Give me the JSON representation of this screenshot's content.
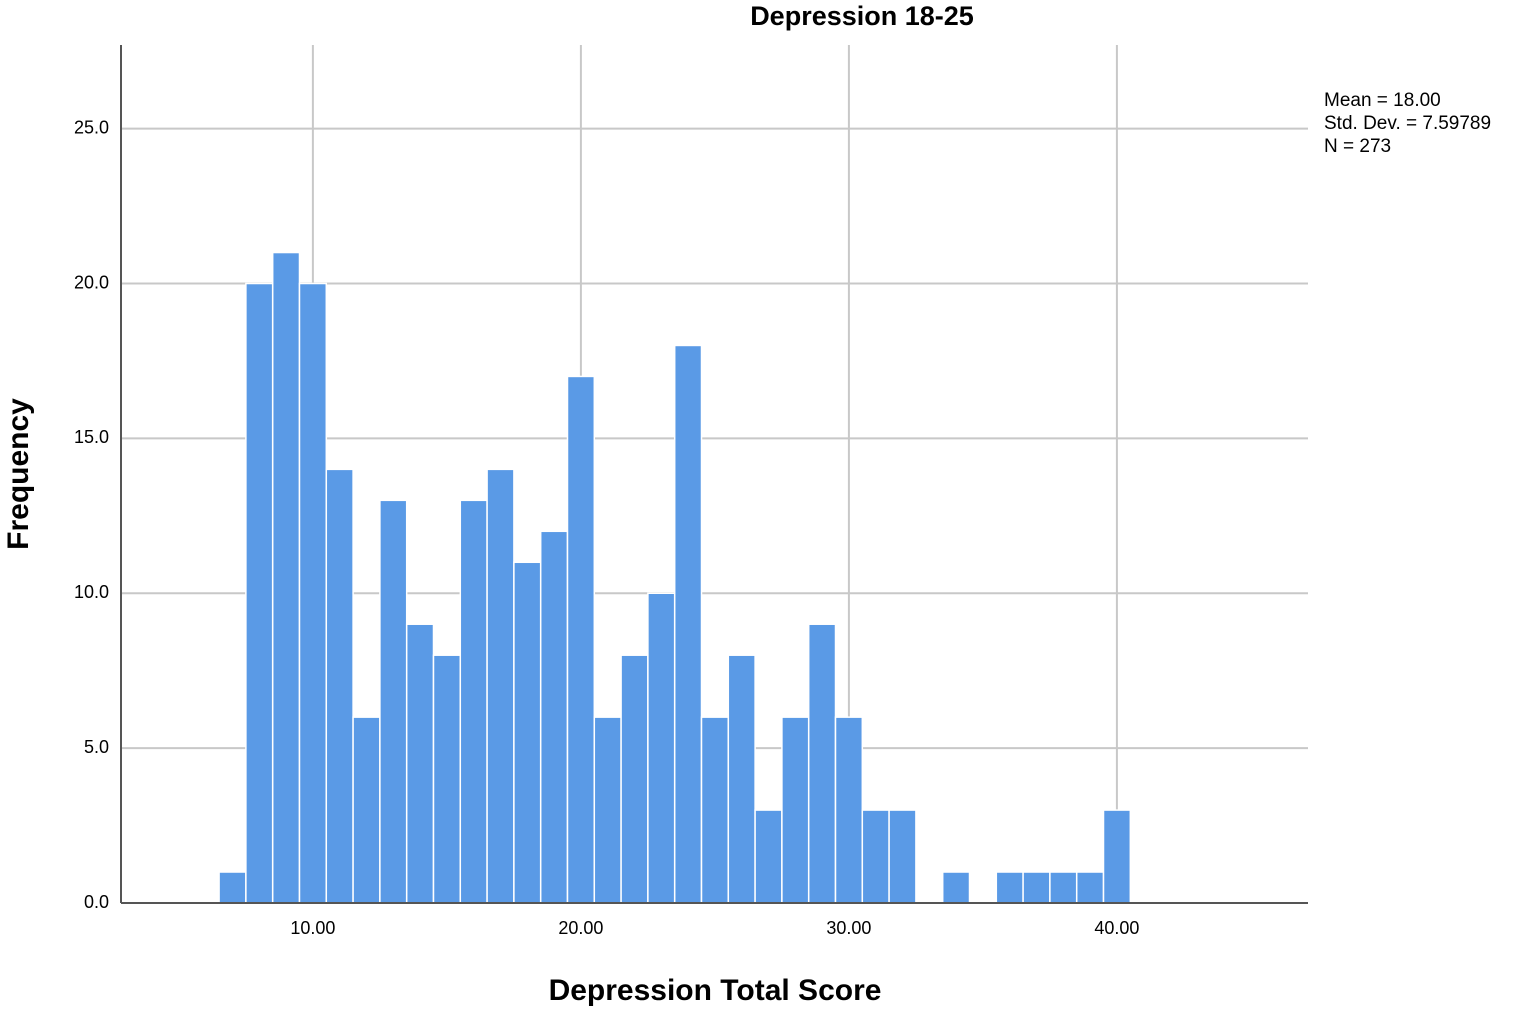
{
  "chart_data": {
    "type": "histogram",
    "title": "Depression 18-25",
    "xlabel": "Depression Total Score",
    "ylabel": "Frequency",
    "bins": [
      6.5,
      7.5,
      8.5,
      9.5,
      10.5,
      11.5,
      12.5,
      13.5,
      14.5,
      15.5,
      16.5,
      17.5,
      18.5,
      19.5,
      20.5,
      21.5,
      22.5,
      23.5,
      24.5,
      25.5,
      26.5,
      27.5,
      28.5,
      29.5,
      30.5,
      31.5,
      32.5,
      33.5,
      34.5,
      35.5,
      36.5,
      37.5,
      38.5,
      39.5,
      40.5
    ],
    "values": [
      1,
      20,
      21,
      20,
      14,
      6,
      13,
      9,
      8,
      13,
      14,
      11,
      12,
      17,
      6,
      8,
      10,
      18,
      6,
      8,
      3,
      6,
      9,
      6,
      3,
      3,
      0,
      1,
      0,
      1,
      1,
      1,
      1,
      3
    ],
    "color": "#5a9ae6",
    "xlim": [
      2.84,
      47.13
    ],
    "xticks": [
      {
        "value": 10,
        "label": "10.00"
      },
      {
        "value": 20,
        "label": "20.00"
      },
      {
        "value": 30,
        "label": "30.00"
      },
      {
        "value": 40,
        "label": "40.00"
      }
    ],
    "ylim": [
      0,
      27.7
    ],
    "yticks": [
      {
        "value": 0,
        "label": "0.0"
      },
      {
        "value": 5,
        "label": "5.0"
      },
      {
        "value": 10,
        "label": "10.0"
      },
      {
        "value": 15,
        "label": "15.0"
      },
      {
        "value": 20,
        "label": "20.0"
      },
      {
        "value": 25,
        "label": "25.0"
      }
    ],
    "grid": true,
    "stats": [
      "Mean = 18.00",
      "Std. Dev. = 7.59789",
      "N = 273"
    ]
  }
}
